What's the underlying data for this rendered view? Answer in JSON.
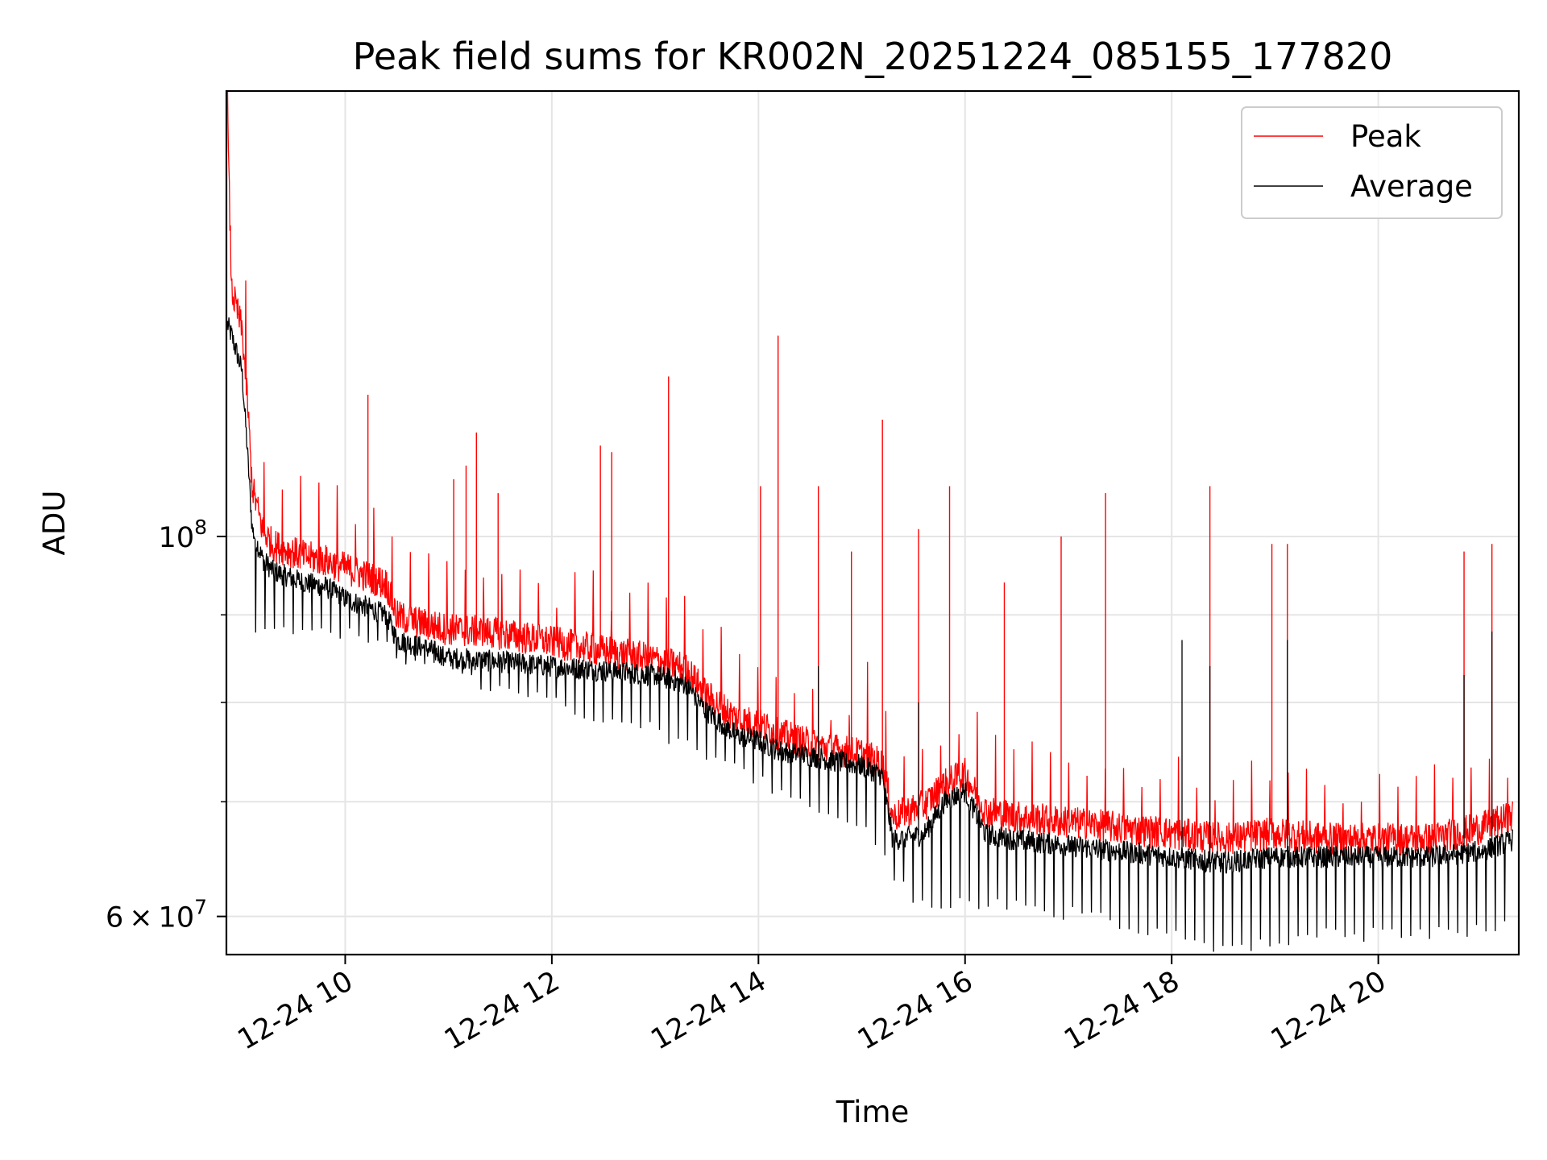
{
  "chart_data": {
    "type": "line",
    "title": "Peak field sums for KR002N_20251224_085155_177820",
    "xlabel": "Time",
    "ylabel": "ADU",
    "yscale": "log",
    "ylim": [
      57000000,
      182000000
    ],
    "xlim_hours": [
      8.85,
      21.36
    ],
    "grid": true,
    "x_ticks": [
      {
        "hour": 10,
        "label": "12-24 10"
      },
      {
        "hour": 12,
        "label": "12-24 12"
      },
      {
        "hour": 14,
        "label": "12-24 14"
      },
      {
        "hour": 16,
        "label": "12-24 16"
      },
      {
        "hour": 18,
        "label": "12-24 18"
      },
      {
        "hour": 20,
        "label": "12-24 20"
      }
    ],
    "y_major_ticks": [
      {
        "value": 60000000,
        "label_mantissa": "6",
        "label_base": "10",
        "label_exp": "7"
      },
      {
        "value": 100000000,
        "label_mantissa": "",
        "label_base": "10",
        "label_exp": "8"
      }
    ],
    "y_minor_ticks": [
      70000000,
      80000000,
      90000000
    ],
    "legend": {
      "position": "top-right",
      "entries": [
        {
          "label": "Peak",
          "color": "#ff0000"
        },
        {
          "label": "Average",
          "color": "#000000"
        }
      ]
    },
    "series": [
      {
        "name": "Peak",
        "color": "#ff0000",
        "x_hours": [
          8.86,
          8.9,
          9.0,
          9.05,
          9.1,
          9.2,
          9.3,
          9.4,
          9.5,
          9.6,
          9.8,
          10.0,
          10.2,
          10.4,
          10.5,
          10.8,
          11.0,
          11.5,
          12.0,
          12.5,
          13.0,
          13.3,
          13.5,
          13.8,
          14.0,
          14.2,
          14.5,
          14.7,
          15.0,
          15.2,
          15.3,
          15.6,
          15.8,
          16.0,
          16.2,
          16.5,
          17.0,
          17.5,
          18.0,
          18.5,
          19.0,
          19.5,
          20.0,
          20.5,
          21.0,
          21.3
        ],
        "values": [
          175000000,
          138000000,
          131000000,
          120000000,
          106000000,
          100000000,
          98000000,
          97500000,
          97000000,
          96500000,
          96000000,
          95000000,
          94000000,
          93000000,
          89000000,
          88000000,
          87500000,
          87000000,
          86000000,
          85000000,
          84000000,
          83000000,
          80000000,
          77500000,
          77000000,
          76000000,
          75000000,
          74500000,
          74000000,
          73000000,
          68000000,
          69000000,
          71000000,
          72000000,
          68500000,
          68000000,
          67500000,
          67000000,
          66500000,
          66000000,
          66500000,
          66000000,
          66000000,
          66000000,
          67000000,
          68000000
        ],
        "spikes": [
          {
            "hour": 10.22,
            "value": 121000000
          },
          {
            "hour": 11.05,
            "value": 108000000
          },
          {
            "hour": 11.17,
            "value": 110000000
          },
          {
            "hour": 11.27,
            "value": 115000000
          },
          {
            "hour": 11.48,
            "value": 106000000
          },
          {
            "hour": 12.47,
            "value": 113000000
          },
          {
            "hour": 12.58,
            "value": 112000000
          },
          {
            "hour": 13.13,
            "value": 124000000
          },
          {
            "hour": 14.02,
            "value": 107000000
          },
          {
            "hour": 14.19,
            "value": 131000000
          },
          {
            "hour": 14.58,
            "value": 107000000
          },
          {
            "hour": 14.9,
            "value": 98000000
          },
          {
            "hour": 15.2,
            "value": 117000000
          },
          {
            "hour": 15.55,
            "value": 101000000
          },
          {
            "hour": 15.85,
            "value": 107000000
          },
          {
            "hour": 16.38,
            "value": 94000000
          },
          {
            "hour": 16.93,
            "value": 100000000
          },
          {
            "hour": 17.36,
            "value": 106000000
          },
          {
            "hour": 18.37,
            "value": 107000000
          },
          {
            "hour": 18.97,
            "value": 99000000
          },
          {
            "hour": 19.12,
            "value": 99000000
          },
          {
            "hour": 20.83,
            "value": 98000000
          },
          {
            "hour": 21.1,
            "value": 99000000
          }
        ]
      },
      {
        "name": "Average",
        "color": "#000000",
        "x_hours": [
          8.86,
          8.9,
          9.0,
          9.05,
          9.1,
          9.2,
          9.3,
          9.4,
          9.5,
          9.6,
          9.8,
          10.0,
          10.2,
          10.4,
          10.5,
          10.8,
          11.0,
          11.5,
          12.0,
          12.5,
          13.0,
          13.3,
          13.5,
          13.8,
          14.0,
          14.2,
          14.5,
          14.7,
          15.0,
          15.2,
          15.3,
          15.6,
          15.8,
          16.0,
          16.2,
          16.5,
          17.0,
          17.5,
          18.0,
          18.5,
          19.0,
          19.5,
          20.0,
          20.5,
          21.0,
          21.3
        ],
        "values": [
          133000000,
          131000000,
          125000000,
          113000000,
          101000000,
          97000000,
          95500000,
          95000000,
          94500000,
          94000000,
          93500000,
          92000000,
          91000000,
          90000000,
          87000000,
          86000000,
          85000000,
          84500000,
          84000000,
          83500000,
          83000000,
          82000000,
          79000000,
          76500000,
          76000000,
          75000000,
          74500000,
          74000000,
          73500000,
          72500000,
          66500000,
          67000000,
          70000000,
          71000000,
          67000000,
          66500000,
          66000000,
          65500000,
          65000000,
          64500000,
          65000000,
          65000000,
          65000000,
          65000000,
          65500000,
          66500000
        ],
        "dip_values": [
          {
            "hour": 10.0,
            "value": 88000000
          },
          {
            "hour": 11.0,
            "value": 83000000
          },
          {
            "hour": 12.0,
            "value": 80000000
          },
          {
            "hour": 13.0,
            "value": 77000000
          },
          {
            "hour": 14.0,
            "value": 72000000
          },
          {
            "hour": 15.0,
            "value": 68000000
          },
          {
            "hour": 15.5,
            "value": 61000000
          },
          {
            "hour": 16.5,
            "value": 61000000
          },
          {
            "hour": 17.5,
            "value": 59500000
          },
          {
            "hour": 18.5,
            "value": 57500000
          },
          {
            "hour": 19.5,
            "value": 58500000
          },
          {
            "hour": 20.5,
            "value": 58500000
          },
          {
            "hour": 21.3,
            "value": 59500000
          }
        ],
        "spikes": [
          {
            "hour": 14.58,
            "value": 84000000
          },
          {
            "hour": 15.55,
            "value": 80000000
          },
          {
            "hour": 18.1,
            "value": 87000000
          },
          {
            "hour": 18.37,
            "value": 84000000
          },
          {
            "hour": 19.12,
            "value": 87000000
          },
          {
            "hour": 20.83,
            "value": 83000000
          },
          {
            "hour": 21.1,
            "value": 88000000
          }
        ]
      }
    ]
  }
}
